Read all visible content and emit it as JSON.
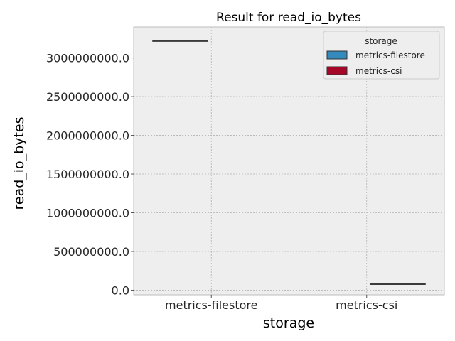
{
  "chart_data": {
    "type": "box",
    "title": "Result for read_io_bytes",
    "xlabel": "storage",
    "ylabel": "read_io_bytes",
    "categories": [
      "metrics-filestore",
      "metrics-csi"
    ],
    "ylim": [
      -60000000,
      3400000000
    ],
    "yticks": [
      0,
      500000000,
      1000000000,
      1500000000,
      2000000000,
      2500000000,
      3000000000
    ],
    "ytick_labels": [
      "0.0",
      "500000000.0",
      "1000000000.0",
      "1500000000.0",
      "2000000000.0",
      "2500000000.0",
      "3000000000.0"
    ],
    "grid": true,
    "legend": {
      "title": "storage",
      "position": "top-right",
      "entries": [
        "metrics-filestore",
        "metrics-csi"
      ]
    },
    "series": [
      {
        "name": "metrics-filestore",
        "category": "metrics-filestore",
        "value": 3220000000,
        "color": "#348abd"
      },
      {
        "name": "metrics-csi",
        "category": "metrics-csi",
        "value": 80000000,
        "color": "#a60628"
      }
    ],
    "colors": {
      "background": "#eeeeee",
      "grid": "#b2b2b2",
      "frame": "#bcbcbc",
      "median": "#3a3a3a"
    }
  }
}
